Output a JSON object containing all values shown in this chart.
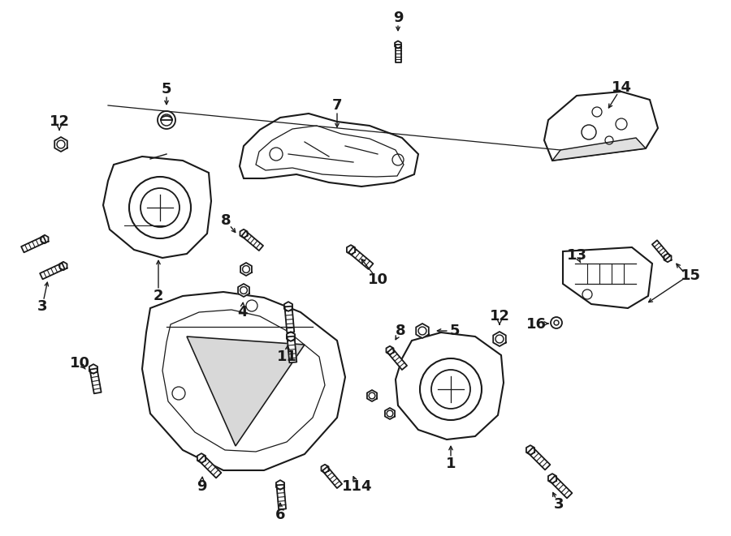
{
  "bg_color": "#ffffff",
  "line_color": "#1a1a1a",
  "figsize": [
    9.0,
    6.61
  ],
  "dpi": 100
}
